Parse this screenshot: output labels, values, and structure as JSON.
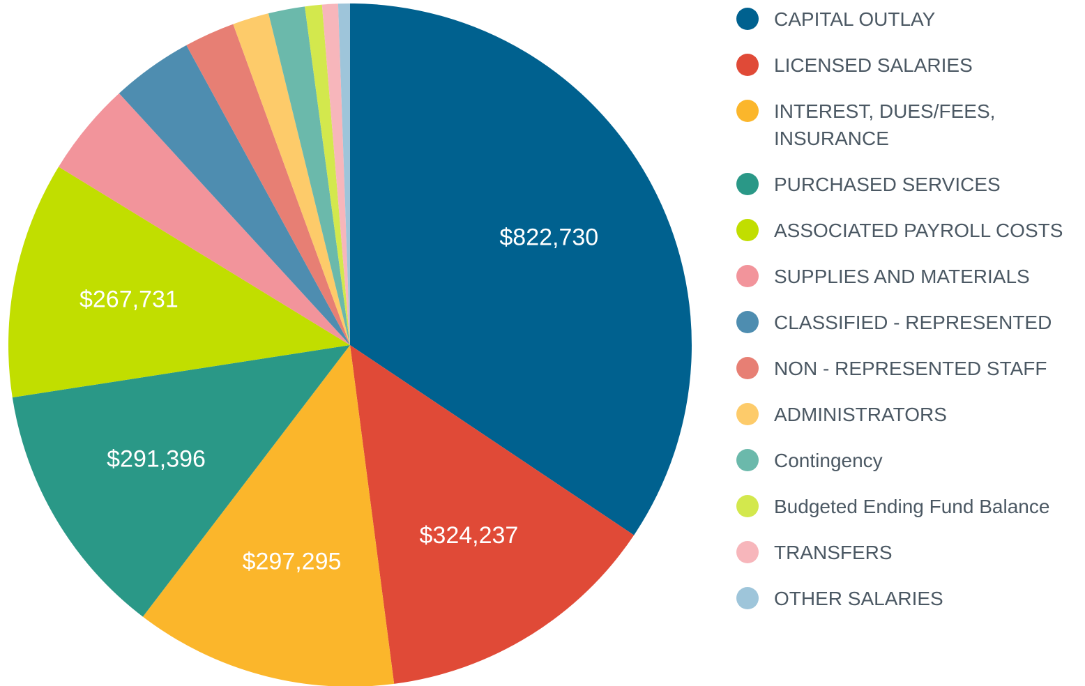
{
  "chart_data": {
    "type": "pie",
    "categories": [
      "CAPITAL OUTLAY",
      "LICENSED SALARIES",
      "INTEREST, DUES/FEES, INSURANCE",
      "PURCHASED SERVICES",
      "ASSOCIATED PAYROLL COSTS",
      "SUPPLIES AND MATERIALS",
      "CLASSIFIED - REPRESENTED",
      "NON - REPRESENTED STAFF",
      "ADMINISTRATORS",
      "Contingency",
      "Budgeted Ending Fund Balance",
      "TRANSFERS",
      "OTHER SALARIES"
    ],
    "values": [
      822730,
      324237,
      297295,
      291396,
      267731,
      106400,
      92400,
      57200,
      41200,
      41200,
      19300,
      18000,
      13300
    ],
    "value_labels": [
      "$822,730",
      "$324,237",
      "$297,295",
      "$291,396",
      "$267,731",
      null,
      null,
      null,
      null,
      null,
      null,
      null,
      null
    ],
    "colors": [
      "#00618f",
      "#e04a37",
      "#fbb62b",
      "#2a9887",
      "#c1de00",
      "#f2949b",
      "#4e8db0",
      "#e77f74",
      "#fdcb6a",
      "#6bb9ab",
      "#d3e84d",
      "#f7b6bb",
      "#9ec5da"
    ],
    "legend": "right"
  }
}
